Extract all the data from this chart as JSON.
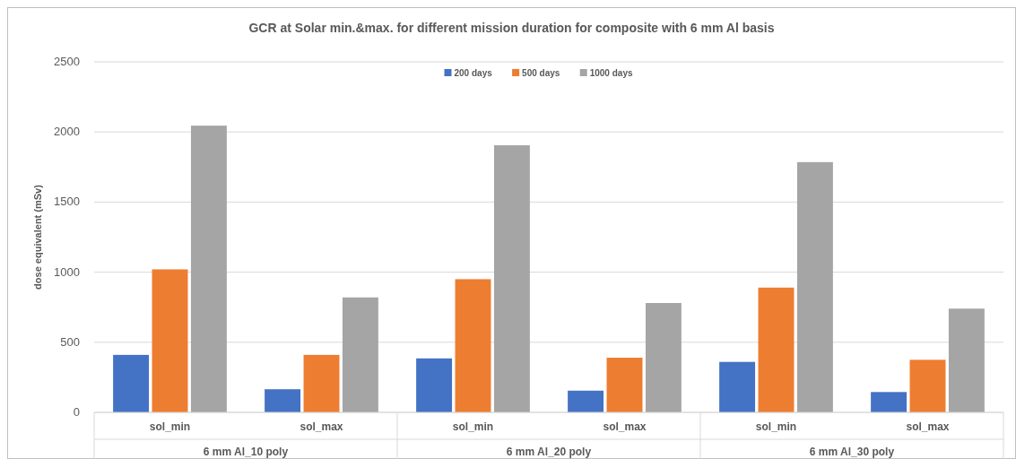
{
  "chart_data": {
    "type": "bar",
    "title": "GCR at Solar min.&max. for different mission duration for composite with 6 mm Al basis",
    "ylabel": "dose equivalent (mSv)",
    "categories": [
      "sol_min",
      "sol_max",
      "sol_min",
      "sol_max",
      "sol_min",
      "sol_max"
    ],
    "annotations": [
      "6 mm Al_10 poly",
      "6 mm Al_20 poly",
      "6 mm Al_30 poly"
    ],
    "series": [
      {
        "name": "200 days",
        "color": "#4472c4",
        "values": [
          410,
          165,
          385,
          155,
          360,
          145
        ]
      },
      {
        "name": "500 days",
        "color": "#ed7d31",
        "values": [
          1020,
          410,
          950,
          390,
          890,
          375
        ]
      },
      {
        "name": "1000 days",
        "color": "#a5a5a5",
        "values": [
          2045,
          820,
          1905,
          780,
          1785,
          740
        ]
      }
    ],
    "ylim": [
      0,
      2500
    ],
    "yticks": [
      0,
      500,
      1000,
      1500,
      2000,
      2500
    ],
    "grid": true,
    "legend": "top"
  }
}
